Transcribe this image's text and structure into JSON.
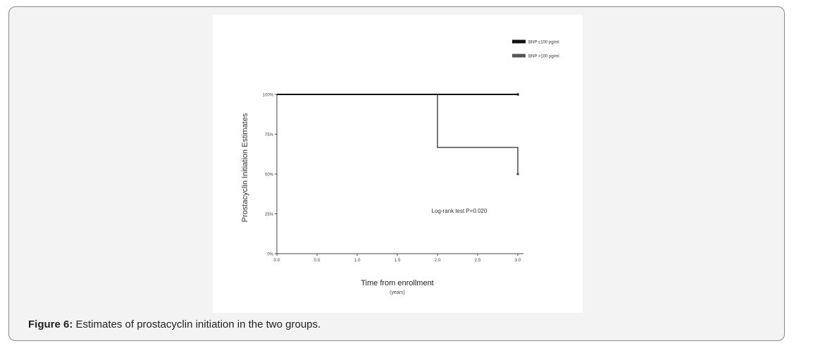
{
  "figure": {
    "caption_label": "Figure 6:",
    "caption_text": " Estimates of prostacyclin initiation in the two groups."
  },
  "chart_data": {
    "type": "line",
    "step": true,
    "ylabel": "Prostacyclin Initiation Estimates",
    "xlabel": "Time from enrollment",
    "xlabel_sub": "(years)",
    "xlim": [
      0,
      3
    ],
    "ylim": [
      0,
      100
    ],
    "x_ticks": [
      "0.0",
      "0.5",
      "1.0",
      "1.5",
      "2.0",
      "2.5",
      "3.0"
    ],
    "y_ticks": [
      "0%",
      "25%",
      "50%",
      "75%",
      "100%"
    ],
    "annotation": "Log-rank test P=0.020",
    "legend_position": "top-right",
    "series": [
      {
        "name": "BNP ≤100 pg/ml",
        "color": "#111111",
        "points": [
          [
            0,
            100
          ],
          [
            3.0,
            100
          ]
        ]
      },
      {
        "name": "BNP >100 pg/ml",
        "color": "#555555",
        "points": [
          [
            0,
            100
          ],
          [
            2.0,
            100
          ],
          [
            2.0,
            66.7
          ],
          [
            3.0,
            66.7
          ],
          [
            3.0,
            50
          ]
        ]
      }
    ]
  }
}
